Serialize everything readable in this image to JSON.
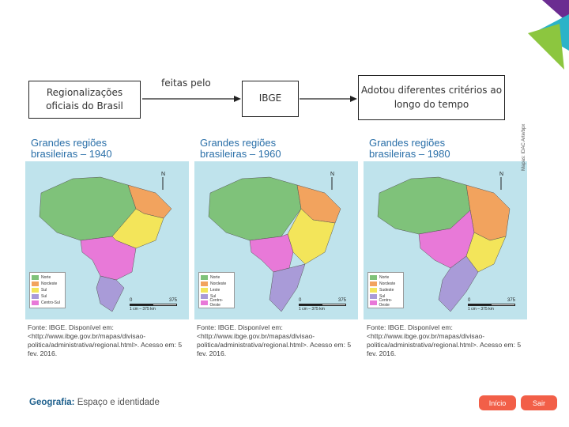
{
  "flow": {
    "box1": "Regionalizações oficiais do Brasil",
    "between": "feitas pelo",
    "box2": "IBGE",
    "box3": "Adotou diferentes critérios ao longo do tempo"
  },
  "maps": [
    {
      "title_line1": "Grandes regiões",
      "title_line2": "brasileiras – 1940",
      "legend": [
        "Norte",
        "Nordeste",
        "Sul",
        "Sul",
        "Centro-Sul"
      ],
      "scale_min": "0",
      "scale_max": "375",
      "scale_unit": "1 cm – 375 km",
      "source": "Fonte: IBGE. Disponível em: <http://www.ibge.gov.br/mapas/divisao-politica/administrativa/regional.html>. Acesso em: 5 fev. 2016."
    },
    {
      "title_line1": "Grandes regiões",
      "title_line2": "brasileiras – 1960",
      "legend": [
        "Norte",
        "Nordeste",
        "Leste",
        "Sul",
        "Centro-Oeste"
      ],
      "scale_min": "0",
      "scale_max": "375",
      "scale_unit": "1 cm – 375 km",
      "source": "Fonte: IBGE. Disponível em: <http://www.ibge.gov.br/mapas/divisao-politica/administrativa/regional.html>. Acesso em: 5 fev. 2016."
    },
    {
      "title_line1": "Grandes regiões",
      "title_line2": "brasileiras – 1980",
      "legend": [
        "Norte",
        "Nordeste",
        "Sudeste",
        "Sul",
        "Centro-Oeste"
      ],
      "scale_min": "0",
      "scale_max": "375",
      "scale_unit": "1 cm – 375 km",
      "source": "Fonte: IBGE. Disponível em: <http://www.ibge.gov.br/mapas/divisao-politica/administrativa/regional.html>. Acesso em: 5 fev. 2016."
    }
  ],
  "side_credit": "Mapas: IDAC Arte/bpx",
  "footer": {
    "label": "Geografia:",
    "subtitle": "Espaço e identidade",
    "start_button": "Início",
    "exit_button": "Sair"
  },
  "colors": {
    "north": "#7fc27a",
    "northeast": "#f2a35e",
    "east_southeast": "#f3e55a",
    "south": "#a99bd8",
    "center_west": "#e879d8",
    "ocean": "#bfe3ec",
    "title": "#2a6fa8",
    "accent": "#f25f48",
    "logo_purple": "#6b2c91",
    "logo_green": "#8cc63f",
    "logo_teal": "#2bb3c8"
  }
}
